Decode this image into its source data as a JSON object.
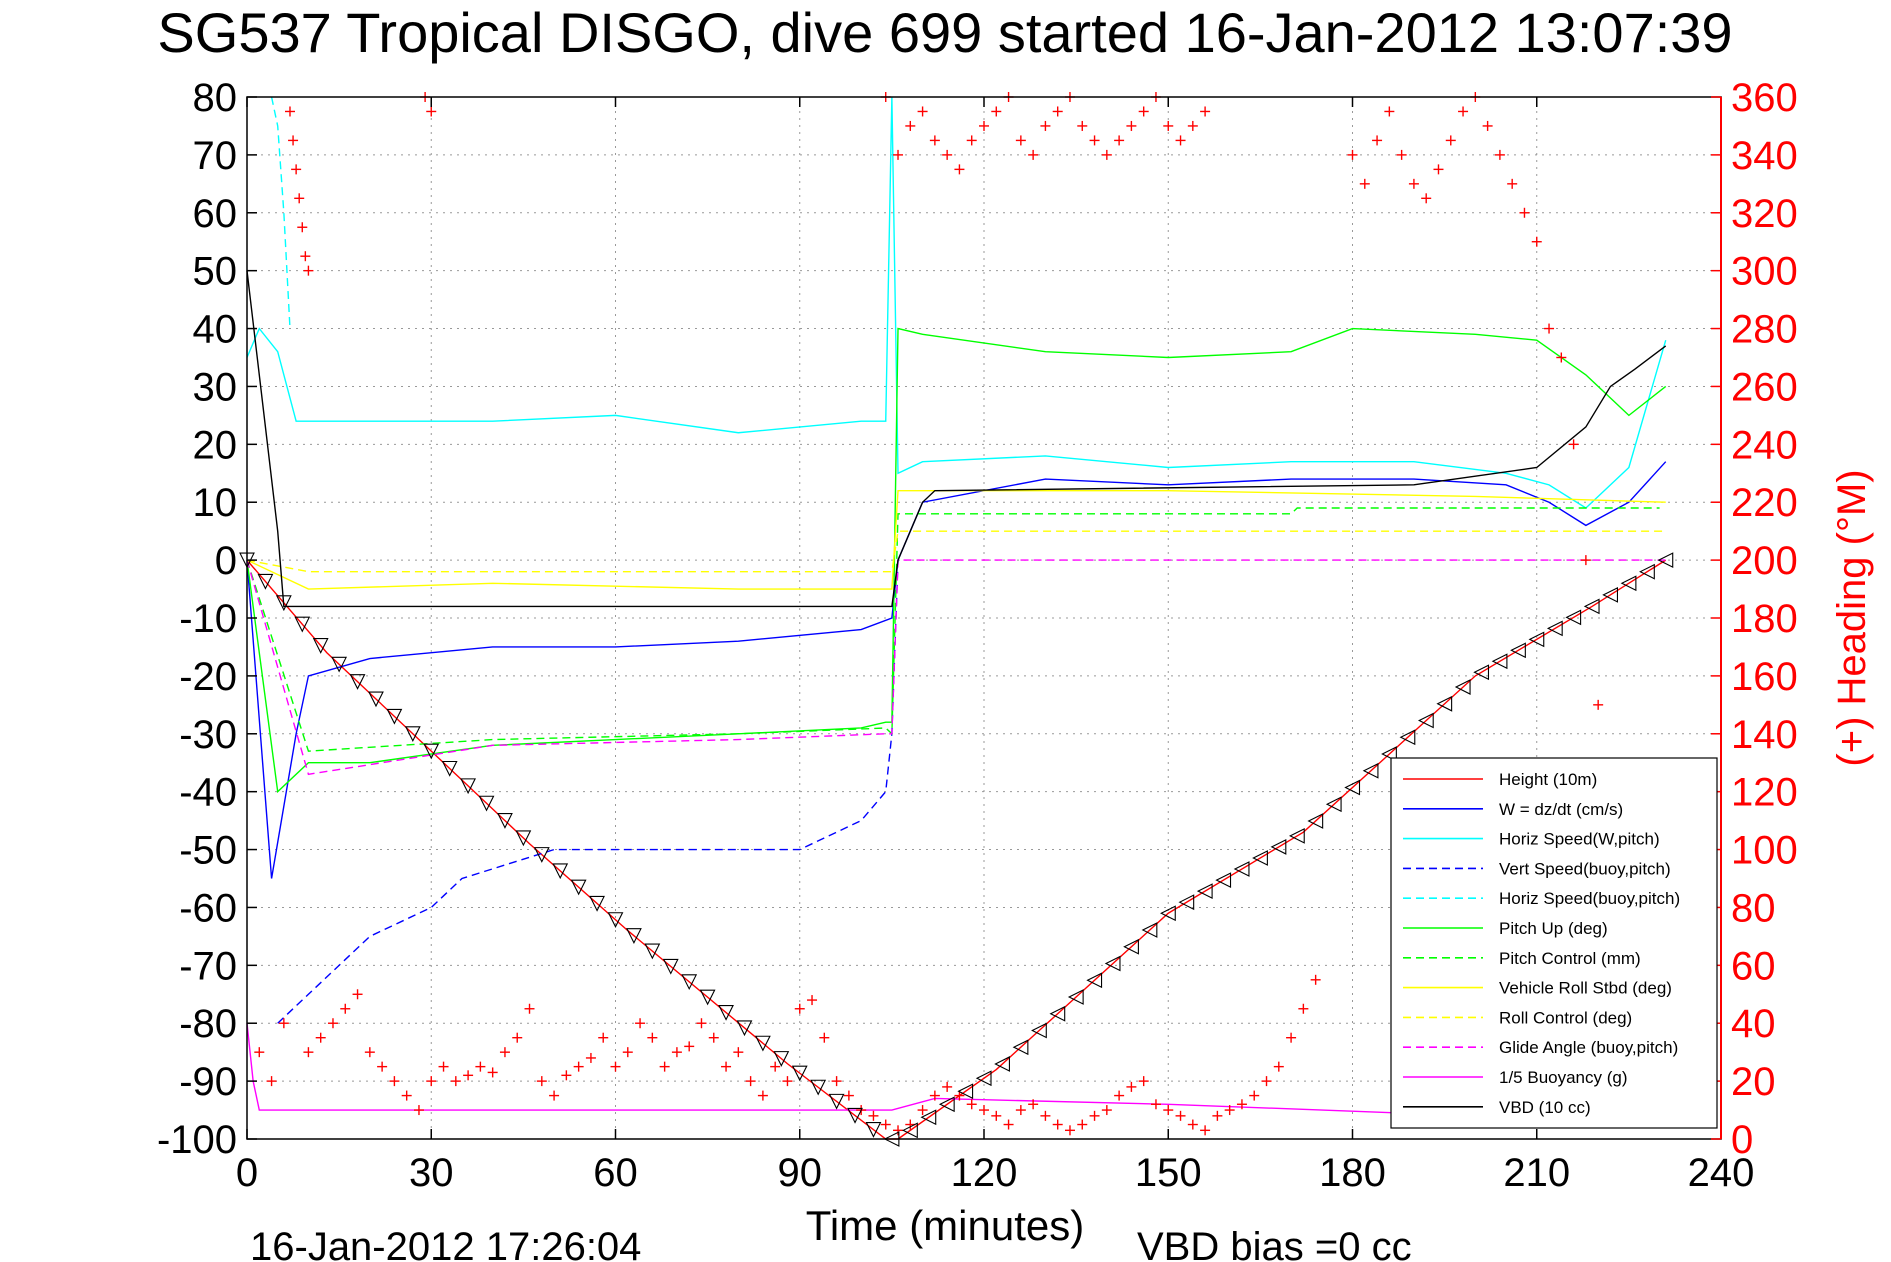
{
  "title": "SG537 Tropical DISGO, dive 699 started 16-Jan-2012 13:07:39",
  "footer": {
    "timestamp": "16-Jan-2012 17:26:04",
    "vbd_bias": "VBD bias =0 cc"
  },
  "chart_data": {
    "type": "line",
    "title": "SG537 Tropical DISGO, dive 699 started 16-Jan-2012 13:07:39",
    "xlabel": "Time (minutes)",
    "ylabel": "",
    "ylabel_right": "(+) Heading (°M)",
    "xlim": [
      0,
      240
    ],
    "ylim": [
      -100,
      80
    ],
    "ylim_right": [
      0,
      360
    ],
    "xticks": [
      0,
      30,
      60,
      90,
      120,
      150,
      180,
      210,
      240
    ],
    "yticks": [
      80,
      70,
      60,
      50,
      40,
      30,
      20,
      10,
      0,
      -10,
      -20,
      -30,
      -40,
      -50,
      -60,
      -70,
      -80,
      -90,
      -100
    ],
    "yticks_right": [
      360,
      340,
      320,
      300,
      280,
      260,
      240,
      220,
      200,
      180,
      160,
      140,
      120,
      100,
      80,
      60,
      40,
      20,
      0
    ],
    "grid": true,
    "legend_position": "bottom-right",
    "series": [
      {
        "name": "Height (10m)",
        "color": "#ff0000",
        "style": "solid",
        "x": [
          0,
          13,
          30,
          46,
          62,
          88,
          104,
          106,
          122,
          150,
          172,
          200,
          219,
          231
        ],
        "y": [
          0,
          -16,
          -33,
          -49,
          -64,
          -87,
          -100,
          -100,
          -88,
          -61,
          -47,
          -20,
          -8,
          0
        ]
      },
      {
        "name": "W = dz/dt (cm/s)",
        "color": "#0000ff",
        "style": "solid",
        "x": [
          0,
          4,
          8,
          10,
          20,
          40,
          60,
          80,
          100,
          105,
          106,
          110,
          130,
          150,
          170,
          190,
          205,
          212,
          218,
          225,
          231
        ],
        "y": [
          0,
          -55,
          -30,
          -20,
          -17,
          -15,
          -15,
          -14,
          -12,
          -10,
          0,
          10,
          14,
          13,
          14,
          14,
          13,
          10,
          6,
          10,
          17
        ]
      },
      {
        "name": "Horiz Speed(W,pitch)",
        "color": "#00ffff",
        "style": "solid",
        "x": [
          0,
          2,
          5,
          8,
          10,
          20,
          40,
          60,
          80,
          100,
          104,
          105,
          106,
          110,
          130,
          150,
          170,
          190,
          205,
          212,
          218,
          225,
          231
        ],
        "y": [
          35,
          40,
          36,
          24,
          24,
          24,
          24,
          25,
          22,
          24,
          24,
          80,
          15,
          17,
          18,
          16,
          17,
          17,
          15,
          13,
          9,
          16,
          38
        ]
      },
      {
        "name": "Vert Speed(buoy,pitch)",
        "color": "#0000ff",
        "style": "dashed",
        "x": [
          5,
          10,
          20,
          30,
          35,
          50,
          70,
          90,
          100,
          104,
          105,
          106
        ],
        "y": [
          -80,
          -75,
          -65,
          -60,
          -55,
          -50,
          -50,
          -50,
          -45,
          -40,
          -30,
          0
        ]
      },
      {
        "name": "Horiz Speed(buoy,pitch)",
        "color": "#00ffff",
        "style": "dashed",
        "x": [
          4,
          5,
          6,
          7
        ],
        "y": [
          80,
          75,
          60,
          40
        ]
      },
      {
        "name": "Pitch Up (deg)",
        "color": "#00ff00",
        "style": "solid",
        "x": [
          0,
          5,
          10,
          20,
          40,
          60,
          80,
          100,
          104,
          105,
          106,
          110,
          130,
          150,
          170,
          180,
          200,
          210,
          218,
          225,
          231
        ],
        "y": [
          0,
          -40,
          -35,
          -35,
          -32,
          -31,
          -30,
          -29,
          -28,
          -28,
          40,
          39,
          36,
          35,
          36,
          40,
          39,
          38,
          32,
          25,
          30
        ]
      },
      {
        "name": "Pitch Control (mm)",
        "color": "#00ff00",
        "style": "dashed",
        "x": [
          0,
          10,
          40,
          80,
          104,
          105,
          106,
          170,
          171,
          230
        ],
        "y": [
          0,
          -33,
          -31,
          -30,
          -29,
          -30,
          8,
          8,
          9,
          9
        ]
      },
      {
        "name": "Vehicle Roll Stbd (deg)",
        "color": "#ffff00",
        "style": "solid",
        "x": [
          0,
          10,
          40,
          80,
          104,
          105,
          106,
          150,
          200,
          231
        ],
        "y": [
          0,
          -5,
          -4,
          -5,
          -5,
          -5,
          12,
          12,
          11,
          10
        ]
      },
      {
        "name": "Roll Control (deg)",
        "color": "#ffff00",
        "style": "dashed",
        "x": [
          0,
          10,
          40,
          80,
          104,
          105,
          106,
          150,
          200,
          231
        ],
        "y": [
          0,
          -2,
          -2,
          -2,
          -2,
          -2,
          5,
          5,
          5,
          5
        ]
      },
      {
        "name": "Glide Angle (buoy,pitch)",
        "color": "#ff00ff",
        "style": "dashed",
        "x": [
          0,
          10,
          40,
          80,
          104,
          105,
          106,
          231
        ],
        "y": [
          0,
          -37,
          -32,
          -31,
          -30,
          -30,
          0,
          0
        ]
      },
      {
        "name": "1/5 Buoyancy (g)",
        "color": "#ff00ff",
        "style": "solid",
        "x": [
          0,
          1,
          2,
          3,
          105,
          112,
          150,
          200,
          230
        ],
        "y": [
          -80,
          -90,
          -95,
          -95,
          -95,
          -93,
          -94,
          -96,
          -98
        ]
      },
      {
        "name": "VBD (10 cc)",
        "color": "#000000",
        "style": "solid",
        "x": [
          0,
          5,
          6,
          20,
          60,
          104,
          105,
          106,
          110,
          112,
          190,
          210,
          218,
          222,
          226,
          231
        ],
        "y": [
          50,
          5,
          -8,
          -8,
          -8,
          -8,
          -8,
          0,
          10,
          12,
          13,
          16,
          23,
          30,
          33,
          37
        ]
      }
    ],
    "heading_points": {
      "name": "(+) Heading (°M)",
      "color": "#ff0000",
      "marker": "+",
      "axis": "right",
      "x": [
        7,
        7.5,
        8,
        8.5,
        9,
        9.5,
        10,
        29,
        30,
        2,
        4,
        6,
        10,
        12,
        14,
        16,
        18,
        20,
        22,
        24,
        26,
        28,
        30,
        32,
        34,
        36,
        38,
        40,
        42,
        44,
        46,
        48,
        50,
        52,
        54,
        56,
        58,
        60,
        62,
        64,
        66,
        68,
        70,
        72,
        74,
        76,
        78,
        80,
        82,
        84,
        86,
        88,
        90,
        92,
        94,
        96,
        98,
        100,
        102,
        104,
        106,
        108,
        110,
        112,
        114,
        116,
        118,
        120,
        122,
        124,
        126,
        128,
        130,
        132,
        134,
        136,
        138,
        140,
        142,
        144,
        146,
        148,
        150,
        152,
        154,
        156,
        158,
        160,
        162,
        164,
        166,
        168,
        170,
        172,
        174,
        104,
        106,
        108,
        110,
        112,
        114,
        116,
        118,
        120,
        122,
        124,
        126,
        128,
        130,
        132,
        134,
        136,
        138,
        140,
        142,
        144,
        146,
        148,
        150,
        152,
        154,
        156,
        180,
        182,
        184,
        186,
        188,
        190,
        192,
        194,
        196,
        198,
        200,
        202,
        204,
        206,
        208,
        210,
        212,
        214,
        216,
        218,
        220
      ],
      "y": [
        355,
        345,
        335,
        325,
        315,
        305,
        300,
        360,
        355,
        30,
        20,
        40,
        30,
        35,
        40,
        45,
        50,
        30,
        25,
        20,
        15,
        10,
        20,
        25,
        20,
        22,
        25,
        23,
        30,
        35,
        45,
        20,
        15,
        22,
        25,
        28,
        35,
        25,
        30,
        40,
        35,
        25,
        30,
        32,
        40,
        35,
        25,
        30,
        20,
        15,
        25,
        20,
        45,
        48,
        35,
        20,
        15,
        10,
        8,
        5,
        3,
        5,
        10,
        15,
        18,
        15,
        12,
        10,
        8,
        5,
        10,
        12,
        8,
        5,
        3,
        5,
        8,
        10,
        15,
        18,
        20,
        12,
        10,
        8,
        5,
        3,
        8,
        10,
        12,
        15,
        20,
        25,
        35,
        45,
        55,
        360,
        340,
        350,
        355,
        345,
        340,
        335,
        345,
        350,
        355,
        360,
        345,
        340,
        350,
        355,
        360,
        350,
        345,
        340,
        345,
        350,
        355,
        360,
        350,
        345,
        350,
        355,
        340,
        330,
        345,
        355,
        340,
        330,
        325,
        335,
        345,
        355,
        360,
        350,
        340,
        330,
        320,
        310,
        280,
        270,
        240,
        200,
        150
      ]
    }
  },
  "legend": [
    {
      "label": "Height (10m)",
      "color": "#ff0000",
      "style": "solid"
    },
    {
      "label": "W = dz/dt (cm/s)",
      "color": "#0000ff",
      "style": "solid"
    },
    {
      "label": "Horiz Speed(W,pitch)",
      "color": "#00ffff",
      "style": "solid"
    },
    {
      "label": "Vert Speed(buoy,pitch)",
      "color": "#0000ff",
      "style": "dashed"
    },
    {
      "label": "Horiz Speed(buoy,pitch)",
      "color": "#00ffff",
      "style": "dashed"
    },
    {
      "label": "Pitch Up (deg)",
      "color": "#00ff00",
      "style": "solid"
    },
    {
      "label": "Pitch Control (mm)",
      "color": "#00ff00",
      "style": "dashed"
    },
    {
      "label": "Vehicle Roll Stbd (deg)",
      "color": "#ffff00",
      "style": "solid"
    },
    {
      "label": "Roll Control (deg)",
      "color": "#ffff00",
      "style": "dashed"
    },
    {
      "label": "Glide Angle (buoy,pitch)",
      "color": "#ff00ff",
      "style": "dashed"
    },
    {
      "label": "1/5 Buoyancy (g)",
      "color": "#ff00ff",
      "style": "solid"
    },
    {
      "label": "VBD (10 cc)",
      "color": "#000000",
      "style": "solid"
    }
  ]
}
